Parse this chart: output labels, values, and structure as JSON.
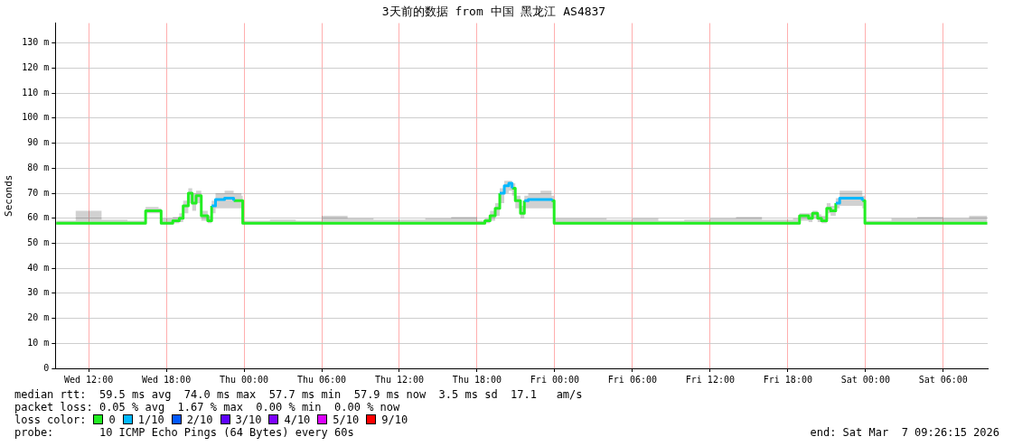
{
  "chart_data": {
    "type": "step",
    "title": "3天前的数据 from 中国 黑龙江 AS4837",
    "ylabel": "Seconds",
    "x": [
      "2026-03-04T09:30",
      "2026-03-04T11:00",
      "2026-03-04T13:00",
      "2026-03-04T15:00",
      "2026-03-04T16:18",
      "2026-03-04T16:24",
      "2026-03-04T17:24",
      "2026-03-04T17:36",
      "2026-03-04T18:30",
      "2026-03-04T19:00",
      "2026-03-04T19:18",
      "2026-03-04T19:42",
      "2026-03-04T20:00",
      "2026-03-04T20:18",
      "2026-03-04T20:42",
      "2026-03-04T21:12",
      "2026-03-04T21:30",
      "2026-03-04T21:48",
      "2026-03-04T22:30",
      "2026-03-04T23:12",
      "2026-03-04T23:48",
      "2026-03-04T23:54",
      "2026-03-05T02:00",
      "2026-03-05T04:00",
      "2026-03-05T06:00",
      "2026-03-05T08:00",
      "2026-03-05T10:00",
      "2026-03-05T12:00",
      "2026-03-05T14:00",
      "2026-03-05T16:00",
      "2026-03-05T18:00",
      "2026-03-05T18:36",
      "2026-03-05T19:00",
      "2026-03-05T19:24",
      "2026-03-05T19:45",
      "2026-03-05T20:06",
      "2026-03-05T20:27",
      "2026-03-05T20:42",
      "2026-03-05T20:57",
      "2026-03-05T21:21",
      "2026-03-05T21:39",
      "2026-03-05T21:57",
      "2026-03-05T22:54",
      "2026-03-05T23:45",
      "2026-03-05T23:57",
      "2026-03-06T02:00",
      "2026-03-06T04:00",
      "2026-03-06T06:00",
      "2026-03-06T08:00",
      "2026-03-06T10:00",
      "2026-03-06T12:00",
      "2026-03-06T14:00",
      "2026-03-06T16:00",
      "2026-03-06T18:24",
      "2026-03-06T18:54",
      "2026-03-06T19:36",
      "2026-03-06T19:54",
      "2026-03-06T20:18",
      "2026-03-06T20:36",
      "2026-03-06T21:00",
      "2026-03-06T21:18",
      "2026-03-06T21:42",
      "2026-03-06T22:00",
      "2026-03-06T23:00",
      "2026-03-06T23:45",
      "2026-03-06T23:57",
      "2026-03-07T02:00",
      "2026-03-07T04:00",
      "2026-03-07T06:00",
      "2026-03-07T08:00",
      "2026-03-07T09:24"
    ],
    "series": [
      {
        "name": "0",
        "color": "#22ee22",
        "values": [
          58,
          58,
          58,
          58,
          58,
          63,
          63,
          58,
          59,
          60,
          65,
          70,
          66,
          69,
          61,
          59,
          65,
          null,
          null,
          67,
          67,
          58,
          58,
          58,
          58,
          58,
          58,
          58,
          58,
          58,
          58,
          59,
          61,
          64,
          70,
          null,
          null,
          72,
          67,
          62,
          67,
          null,
          null,
          67,
          58,
          58,
          58,
          58,
          58,
          58,
          58,
          58,
          58,
          58,
          61,
          60,
          62,
          60,
          59,
          64,
          63,
          66,
          null,
          null,
          67,
          58,
          58,
          58,
          58,
          58,
          58
        ],
        "lower": [
          57.5,
          57.5,
          57.5,
          57.5,
          57.5,
          62,
          62,
          57.5,
          58,
          58.5,
          62,
          66,
          63,
          66,
          59,
          58,
          62,
          64,
          64,
          64,
          63,
          57.5,
          57.5,
          57.5,
          57.5,
          57.5,
          57.5,
          57.5,
          57.5,
          57.5,
          57.5,
          58,
          59,
          61,
          66,
          70,
          71,
          69,
          64,
          60,
          64,
          64,
          64,
          64,
          57.5,
          57.5,
          57.5,
          57.5,
          57.5,
          57.5,
          57.5,
          57.5,
          57.5,
          57.5,
          59,
          58.5,
          60,
          58.5,
          58,
          62,
          61,
          64,
          65,
          65,
          64,
          57.5,
          57.5,
          57.5,
          57.5,
          57.5,
          57.5
        ],
        "upper": [
          59,
          63,
          59.5,
          59,
          59,
          64.5,
          64,
          60,
          60.5,
          62,
          67,
          72,
          70,
          71,
          63,
          61,
          67,
          70,
          71,
          70,
          69,
          59,
          59.5,
          59,
          61,
          60,
          59.5,
          59.5,
          60,
          60.5,
          59,
          60,
          63,
          66,
          72,
          75,
          75,
          74,
          69,
          65,
          69,
          70,
          71,
          69,
          60,
          60,
          59.5,
          60,
          59,
          59.5,
          60,
          60.5,
          59.5,
          60,
          62,
          62,
          63,
          61.5,
          61,
          66,
          65,
          68,
          71,
          71,
          69,
          59,
          60,
          60.5,
          60,
          61,
          59
        ]
      },
      {
        "name": "1/10",
        "color": "#00b8ff",
        "values": [
          null,
          null,
          null,
          null,
          null,
          null,
          null,
          null,
          null,
          null,
          null,
          null,
          null,
          null,
          null,
          null,
          65,
          67.5,
          68,
          67,
          null,
          null,
          null,
          null,
          null,
          null,
          null,
          null,
          null,
          null,
          null,
          null,
          null,
          null,
          70,
          73,
          74,
          72,
          null,
          null,
          67,
          67.5,
          67.5,
          67,
          null,
          null,
          null,
          null,
          null,
          null,
          null,
          null,
          null,
          null,
          null,
          null,
          null,
          null,
          null,
          null,
          null,
          66,
          68,
          68,
          67,
          null,
          null,
          null,
          null,
          null,
          null
        ]
      },
      {
        "name": "2/10",
        "color": "#0059ff",
        "values": [
          null,
          null,
          null,
          null,
          null,
          null,
          null,
          null,
          null,
          null,
          null,
          null,
          null,
          null,
          null,
          null,
          null,
          null,
          null,
          null,
          null,
          null,
          null,
          null,
          null,
          null,
          null,
          null,
          null,
          null,
          null,
          null,
          null,
          null,
          null,
          null,
          null,
          null,
          null,
          null,
          null,
          null,
          null,
          null,
          null,
          null,
          null,
          null,
          null,
          null,
          null,
          null,
          null,
          null,
          null,
          null,
          null,
          null,
          null,
          null,
          null,
          null,
          null,
          null,
          null,
          null,
          null,
          null,
          null,
          null,
          null
        ]
      },
      {
        "name": "3/10",
        "color": "#5e00ff",
        "values": [
          null,
          null,
          null,
          null,
          null,
          null,
          null,
          null,
          null,
          null,
          null,
          null,
          null,
          null,
          null,
          null,
          null,
          null,
          null,
          null,
          null,
          null,
          null,
          null,
          null,
          null,
          null,
          null,
          null,
          null,
          null,
          null,
          null,
          null,
          null,
          null,
          null,
          null,
          null,
          null,
          null,
          null,
          null,
          null,
          null,
          null,
          null,
          null,
          null,
          null,
          null,
          null,
          null,
          null,
          null,
          null,
          null,
          null,
          null,
          null,
          null,
          null,
          null,
          null,
          null,
          null,
          null,
          null,
          null,
          null,
          null
        ]
      },
      {
        "name": "4/10",
        "color": "#7e00ff",
        "values": [
          null,
          null,
          null,
          null,
          null,
          null,
          null,
          null,
          null,
          null,
          null,
          null,
          null,
          null,
          null,
          null,
          null,
          null,
          null,
          null,
          null,
          null,
          null,
          null,
          null,
          null,
          null,
          null,
          null,
          null,
          null,
          null,
          null,
          null,
          null,
          null,
          null,
          null,
          null,
          null,
          null,
          null,
          null,
          null,
          null,
          null,
          null,
          null,
          null,
          null,
          null,
          null,
          null,
          null,
          null,
          null,
          null,
          null,
          null,
          null,
          null,
          null,
          null,
          null,
          null,
          null,
          null,
          null,
          null,
          null,
          null
        ]
      },
      {
        "name": "5/10",
        "color": "#dd00ff",
        "values": [
          null,
          null,
          null,
          null,
          null,
          null,
          null,
          null,
          null,
          null,
          null,
          null,
          null,
          null,
          null,
          null,
          null,
          null,
          null,
          null,
          null,
          null,
          null,
          null,
          null,
          null,
          null,
          null,
          null,
          null,
          null,
          null,
          null,
          null,
          null,
          null,
          null,
          null,
          null,
          null,
          null,
          null,
          null,
          null,
          null,
          null,
          null,
          null,
          null,
          null,
          null,
          null,
          null,
          null,
          null,
          null,
          null,
          null,
          null,
          null,
          null,
          null,
          null,
          null,
          null,
          null,
          null,
          null,
          null,
          null,
          null
        ]
      },
      {
        "name": "9/10",
        "color": "#ff0000",
        "values": [
          null,
          null,
          null,
          null,
          null,
          null,
          null,
          null,
          null,
          null,
          null,
          null,
          null,
          null,
          null,
          null,
          null,
          null,
          null,
          null,
          null,
          null,
          null,
          null,
          null,
          null,
          null,
          null,
          null,
          null,
          null,
          null,
          null,
          null,
          null,
          null,
          null,
          null,
          null,
          null,
          null,
          null,
          null,
          null,
          null,
          null,
          null,
          null,
          null,
          null,
          null,
          null,
          null,
          null,
          null,
          null,
          null,
          null,
          null,
          null,
          null,
          null,
          null,
          null,
          null,
          null,
          null,
          null,
          null,
          null,
          null
        ]
      }
    ],
    "xlim": [
      "2026-03-04T09:26",
      "2026-03-07T09:26"
    ],
    "xticks": [
      {
        "value": "2026-03-04T12:00",
        "label": "Wed 12:00"
      },
      {
        "value": "2026-03-04T18:00",
        "label": "Wed 18:00"
      },
      {
        "value": "2026-03-05T00:00",
        "label": "Thu 00:00"
      },
      {
        "value": "2026-03-05T06:00",
        "label": "Thu 06:00"
      },
      {
        "value": "2026-03-05T12:00",
        "label": "Thu 12:00"
      },
      {
        "value": "2026-03-05T18:00",
        "label": "Thu 18:00"
      },
      {
        "value": "2026-03-06T00:00",
        "label": "Fri 00:00"
      },
      {
        "value": "2026-03-06T06:00",
        "label": "Fri 06:00"
      },
      {
        "value": "2026-03-06T12:00",
        "label": "Fri 12:00"
      },
      {
        "value": "2026-03-06T18:00",
        "label": "Fri 18:00"
      },
      {
        "value": "2026-03-07T00:00",
        "label": "Sat 00:00"
      },
      {
        "value": "2026-03-07T06:00",
        "label": "Sat 06:00"
      }
    ],
    "ylim": [
      0,
      138
    ],
    "yticks": [
      0,
      {
        "value": 10,
        "label": "10 m"
      },
      {
        "value": 20,
        "label": "20 m"
      },
      {
        "value": 30,
        "label": "30 m"
      },
      {
        "value": 40,
        "label": "40 m"
      },
      {
        "value": 50,
        "label": "50 m"
      },
      {
        "value": 60,
        "label": "60 m"
      },
      {
        "value": 70,
        "label": "70 m"
      },
      {
        "value": 80,
        "label": "80 m"
      },
      {
        "value": 90,
        "label": "90 m"
      },
      {
        "value": 100,
        "label": "100 m"
      },
      {
        "value": 110,
        "label": "110 m"
      },
      {
        "value": 120,
        "label": "120 m"
      },
      {
        "value": 130,
        "label": "130 m"
      }
    ],
    "grid": true,
    "legend": "bottom",
    "legend_title": "loss color:",
    "annotations": [
      "median rtt:  59.5 ms avg  74.0 ms max  57.7 ms min  57.9 ms now  3.5 ms sd  17.1   am/s",
      "packet loss: 0.05 % avg  1.67 % max  0.00 % min  0.00 % now",
      "probe:       10 ICMP Echo Pings (64 Bytes) every 60s",
      "end: Sat Mar  7 09:26:15 2026"
    ]
  }
}
